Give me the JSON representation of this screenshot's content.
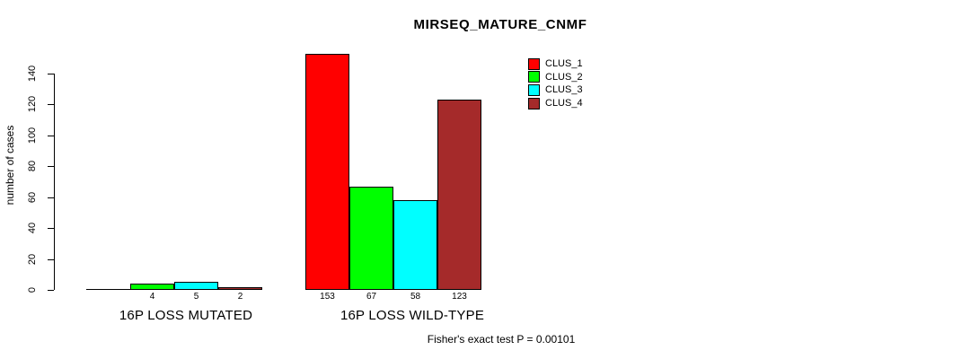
{
  "chart_data": {
    "type": "bar",
    "title": "MIRSEQ_MATURE_CNMF",
    "xlabel": "",
    "ylabel": "number of cases",
    "annotation": "Fisher's exact test P = 0.00101",
    "categories": [
      "16P LOSS MUTATED",
      "16P LOSS WILD-TYPE"
    ],
    "series": [
      {
        "name": "CLUS_1",
        "color": "#FF0000",
        "values": [
          0,
          153
        ]
      },
      {
        "name": "CLUS_2",
        "color": "#00FF00",
        "values": [
          4,
          67
        ]
      },
      {
        "name": "CLUS_3",
        "color": "#00FFFF",
        "values": [
          5,
          58
        ]
      },
      {
        "name": "CLUS_4",
        "color": "#A52A2A",
        "values": [
          2,
          123
        ]
      }
    ],
    "bar_value_labels": [
      [
        "",
        "4",
        "5",
        "2"
      ],
      [
        "153",
        "67",
        "58",
        "123"
      ]
    ],
    "y_ticks": [
      0,
      20,
      40,
      60,
      80,
      100,
      120,
      140
    ],
    "ylim": [
      0,
      160
    ],
    "grid": false,
    "legend_position": "top-right",
    "bar_border_color": "#000000",
    "background_color": "#FFFFFF"
  }
}
